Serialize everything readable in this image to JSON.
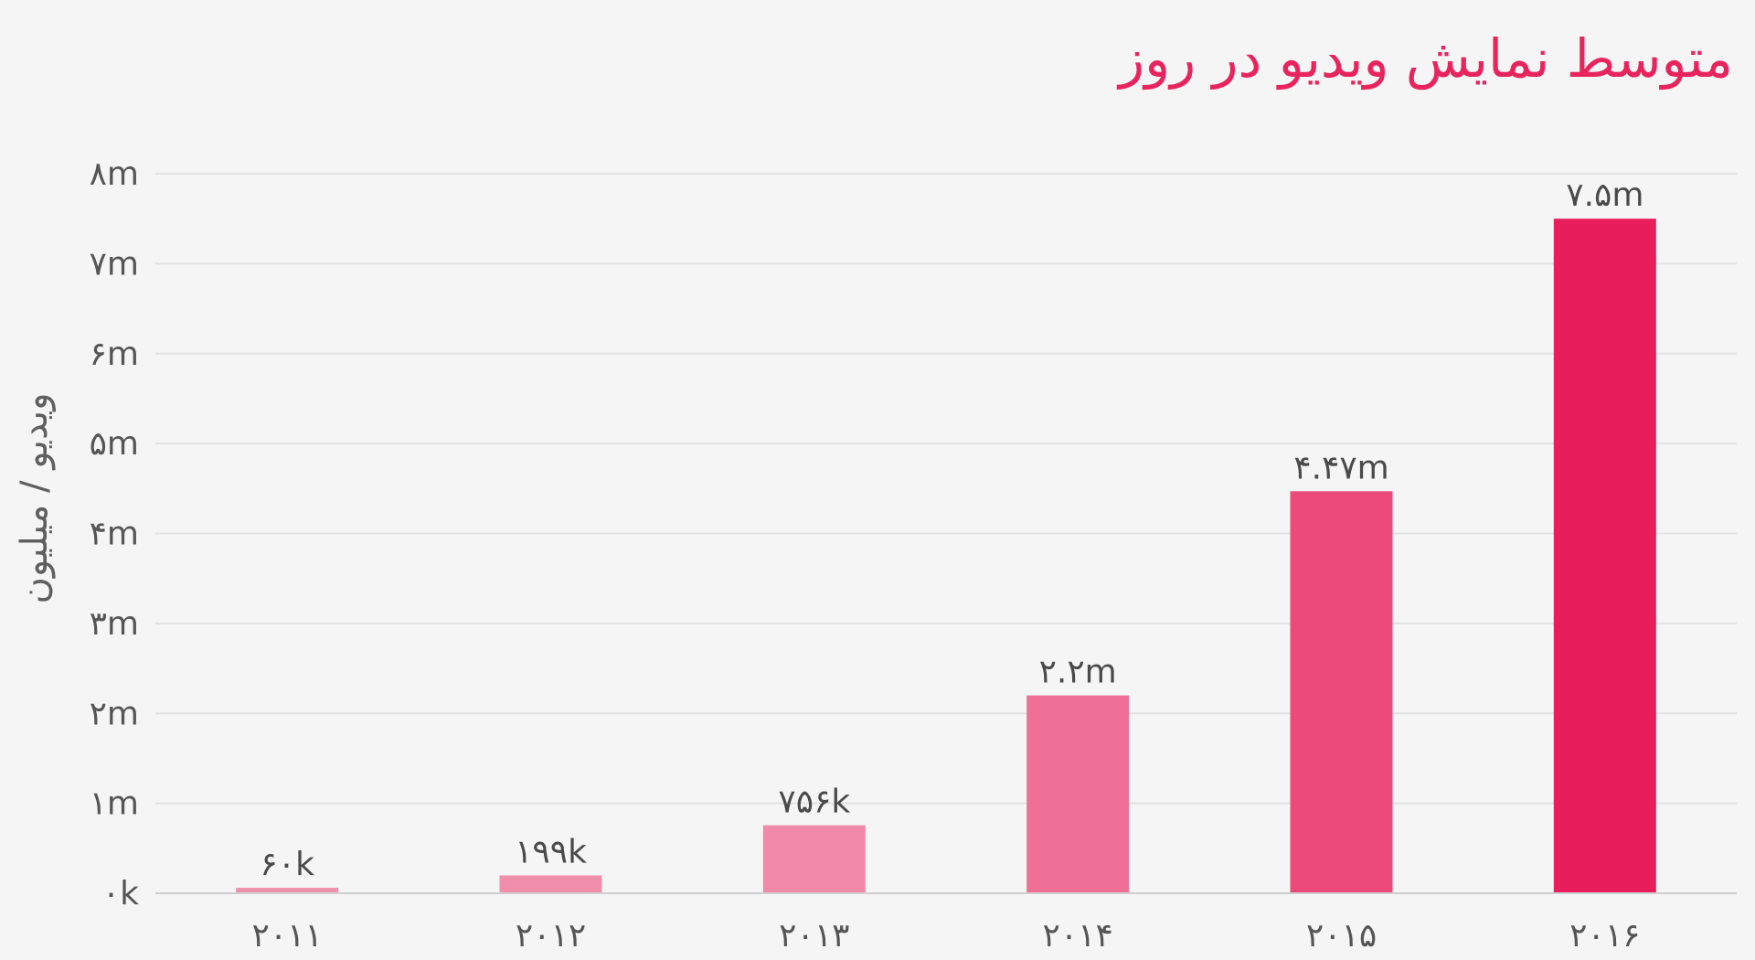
{
  "chart_data": {
    "type": "bar",
    "title": "متوسط نمایش ویدیو در روز",
    "ylabel": "ویدیو / میلیون",
    "xlabel": "",
    "categories": [
      "۲۰۱۱",
      "۲۰۱۲",
      "۲۰۱۳",
      "۲۰۱۴",
      "۲۰۱۵",
      "۲۰۱۶"
    ],
    "values": [
      0.06,
      0.199,
      0.756,
      2.2,
      4.47,
      7.5
    ],
    "data_labels": [
      "۶۰k",
      "۱۹۹k",
      "۷۵۶k",
      "۲.۲m",
      "۴.۴۷m",
      "۷.۵m"
    ],
    "colors": [
      "#f08fab",
      "#f08fab",
      "#f08aa8",
      "#ef7097",
      "#ec4a7b",
      "#e81d5c"
    ],
    "ylim": [
      0,
      8
    ],
    "yticks": [
      0,
      1,
      2,
      3,
      4,
      5,
      6,
      7,
      8
    ],
    "ytick_labels": [
      "۰k",
      "۱m",
      "۲m",
      "۳m",
      "۴m",
      "۵m",
      "۶m",
      "۷m",
      "۸m"
    ],
    "grid": true,
    "title_color": "#e8245e"
  }
}
